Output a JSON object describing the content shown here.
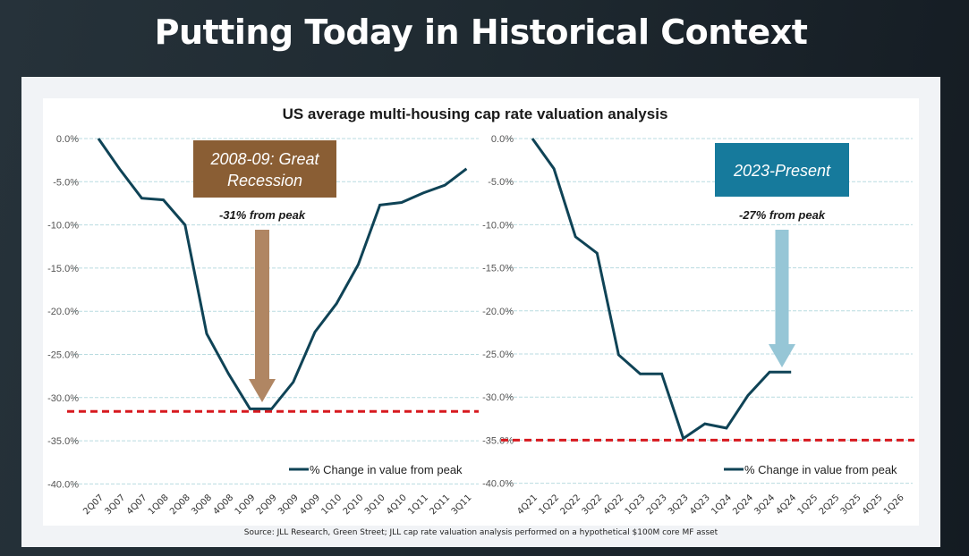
{
  "slide": {
    "title": "Putting Today in Historical Context",
    "source": "Source: JLL Research, Green Street; JLL cap rate valuation analysis performed on a hypothetical $100M core MF asset"
  },
  "colors": {
    "line": "#0f4356",
    "grid": "#b9dbe0",
    "trough_line": "#d7191f",
    "recession_box": "#8a5e34",
    "recession_arrow": "#b08663",
    "present_box": "#167a9c",
    "present_arrow": "#96c6d6"
  },
  "chart_data": [
    {
      "type": "line",
      "id": "great-recession",
      "title": "US average multi-housing cap rate valuation analysis",
      "xlabel": "",
      "ylabel": "",
      "ylim": [
        -40,
        0
      ],
      "yticks": [
        0,
        -5,
        -10,
        -15,
        -20,
        -25,
        -30,
        -35,
        -40
      ],
      "ytick_labels": [
        "0.0%",
        "-5.0%",
        "-10.0%",
        "-15.0%",
        "-20.0%",
        "-25.0%",
        "-30.0%",
        "-35.0%",
        "-40.0%"
      ],
      "grid": true,
      "legend": "bottom-right",
      "x": [
        "2Q07",
        "3Q07",
        "4Q07",
        "1Q08",
        "2Q08",
        "3Q08",
        "4Q08",
        "1Q09",
        "2Q09",
        "3Q09",
        "4Q09",
        "1Q10",
        "2Q10",
        "3Q10",
        "4Q10",
        "1Q11",
        "2Q11",
        "3Q11"
      ],
      "series": [
        {
          "name": "% Change in value from peak",
          "values": [
            0,
            -3.6,
            -6.9,
            -7.1,
            -10.0,
            -22.6,
            -27.2,
            -31.3,
            -31.3,
            -28.2,
            -22.4,
            -19.1,
            -14.6,
            -7.7,
            -7.4,
            -6.3,
            -5.4,
            -3.5
          ]
        }
      ],
      "reference_line": {
        "value": -31.6,
        "style": "dashed"
      },
      "annotation": {
        "box_text_lines": [
          "2008-09: Great",
          "Recession"
        ],
        "peak_text": "-31% from peak",
        "arrow_target": "2Q09"
      }
    },
    {
      "type": "line",
      "id": "present",
      "title": "US average multi-housing cap rate valuation analysis",
      "xlabel": "",
      "ylabel": "",
      "ylim": [
        -40,
        0
      ],
      "yticks": [
        0,
        -5,
        -10,
        -15,
        -20,
        -25,
        -30,
        -35,
        -40
      ],
      "ytick_labels": [
        "0.0%",
        "-5.0%",
        "-10.0%",
        "-15.0%",
        "-20.0%",
        "-25.0%",
        "-30.0%",
        "-35.0%",
        "-40.0%"
      ],
      "grid": true,
      "legend": "bottom-right",
      "x": [
        "4Q21",
        "1Q22",
        "2Q22",
        "3Q22",
        "4Q22",
        "1Q23",
        "2Q23",
        "3Q23",
        "4Q23",
        "1Q24",
        "2Q24",
        "3Q24",
        "4Q24",
        "1Q25",
        "2Q25",
        "3Q25",
        "4Q25",
        "1Q26"
      ],
      "series": [
        {
          "name": "% Change in value from peak",
          "values": [
            0,
            -3.5,
            -11.4,
            -13.3,
            -25.1,
            -27.3,
            -27.3,
            -34.8,
            -33.1,
            -33.6,
            -29.8,
            -27.1,
            -27.1
          ]
        }
      ],
      "reference_line": {
        "value": -35,
        "style": "dashed"
      },
      "annotation": {
        "box_text_lines": [
          "2023-Present"
        ],
        "peak_text": "-27% from peak",
        "arrow_target": "4Q24"
      }
    }
  ]
}
